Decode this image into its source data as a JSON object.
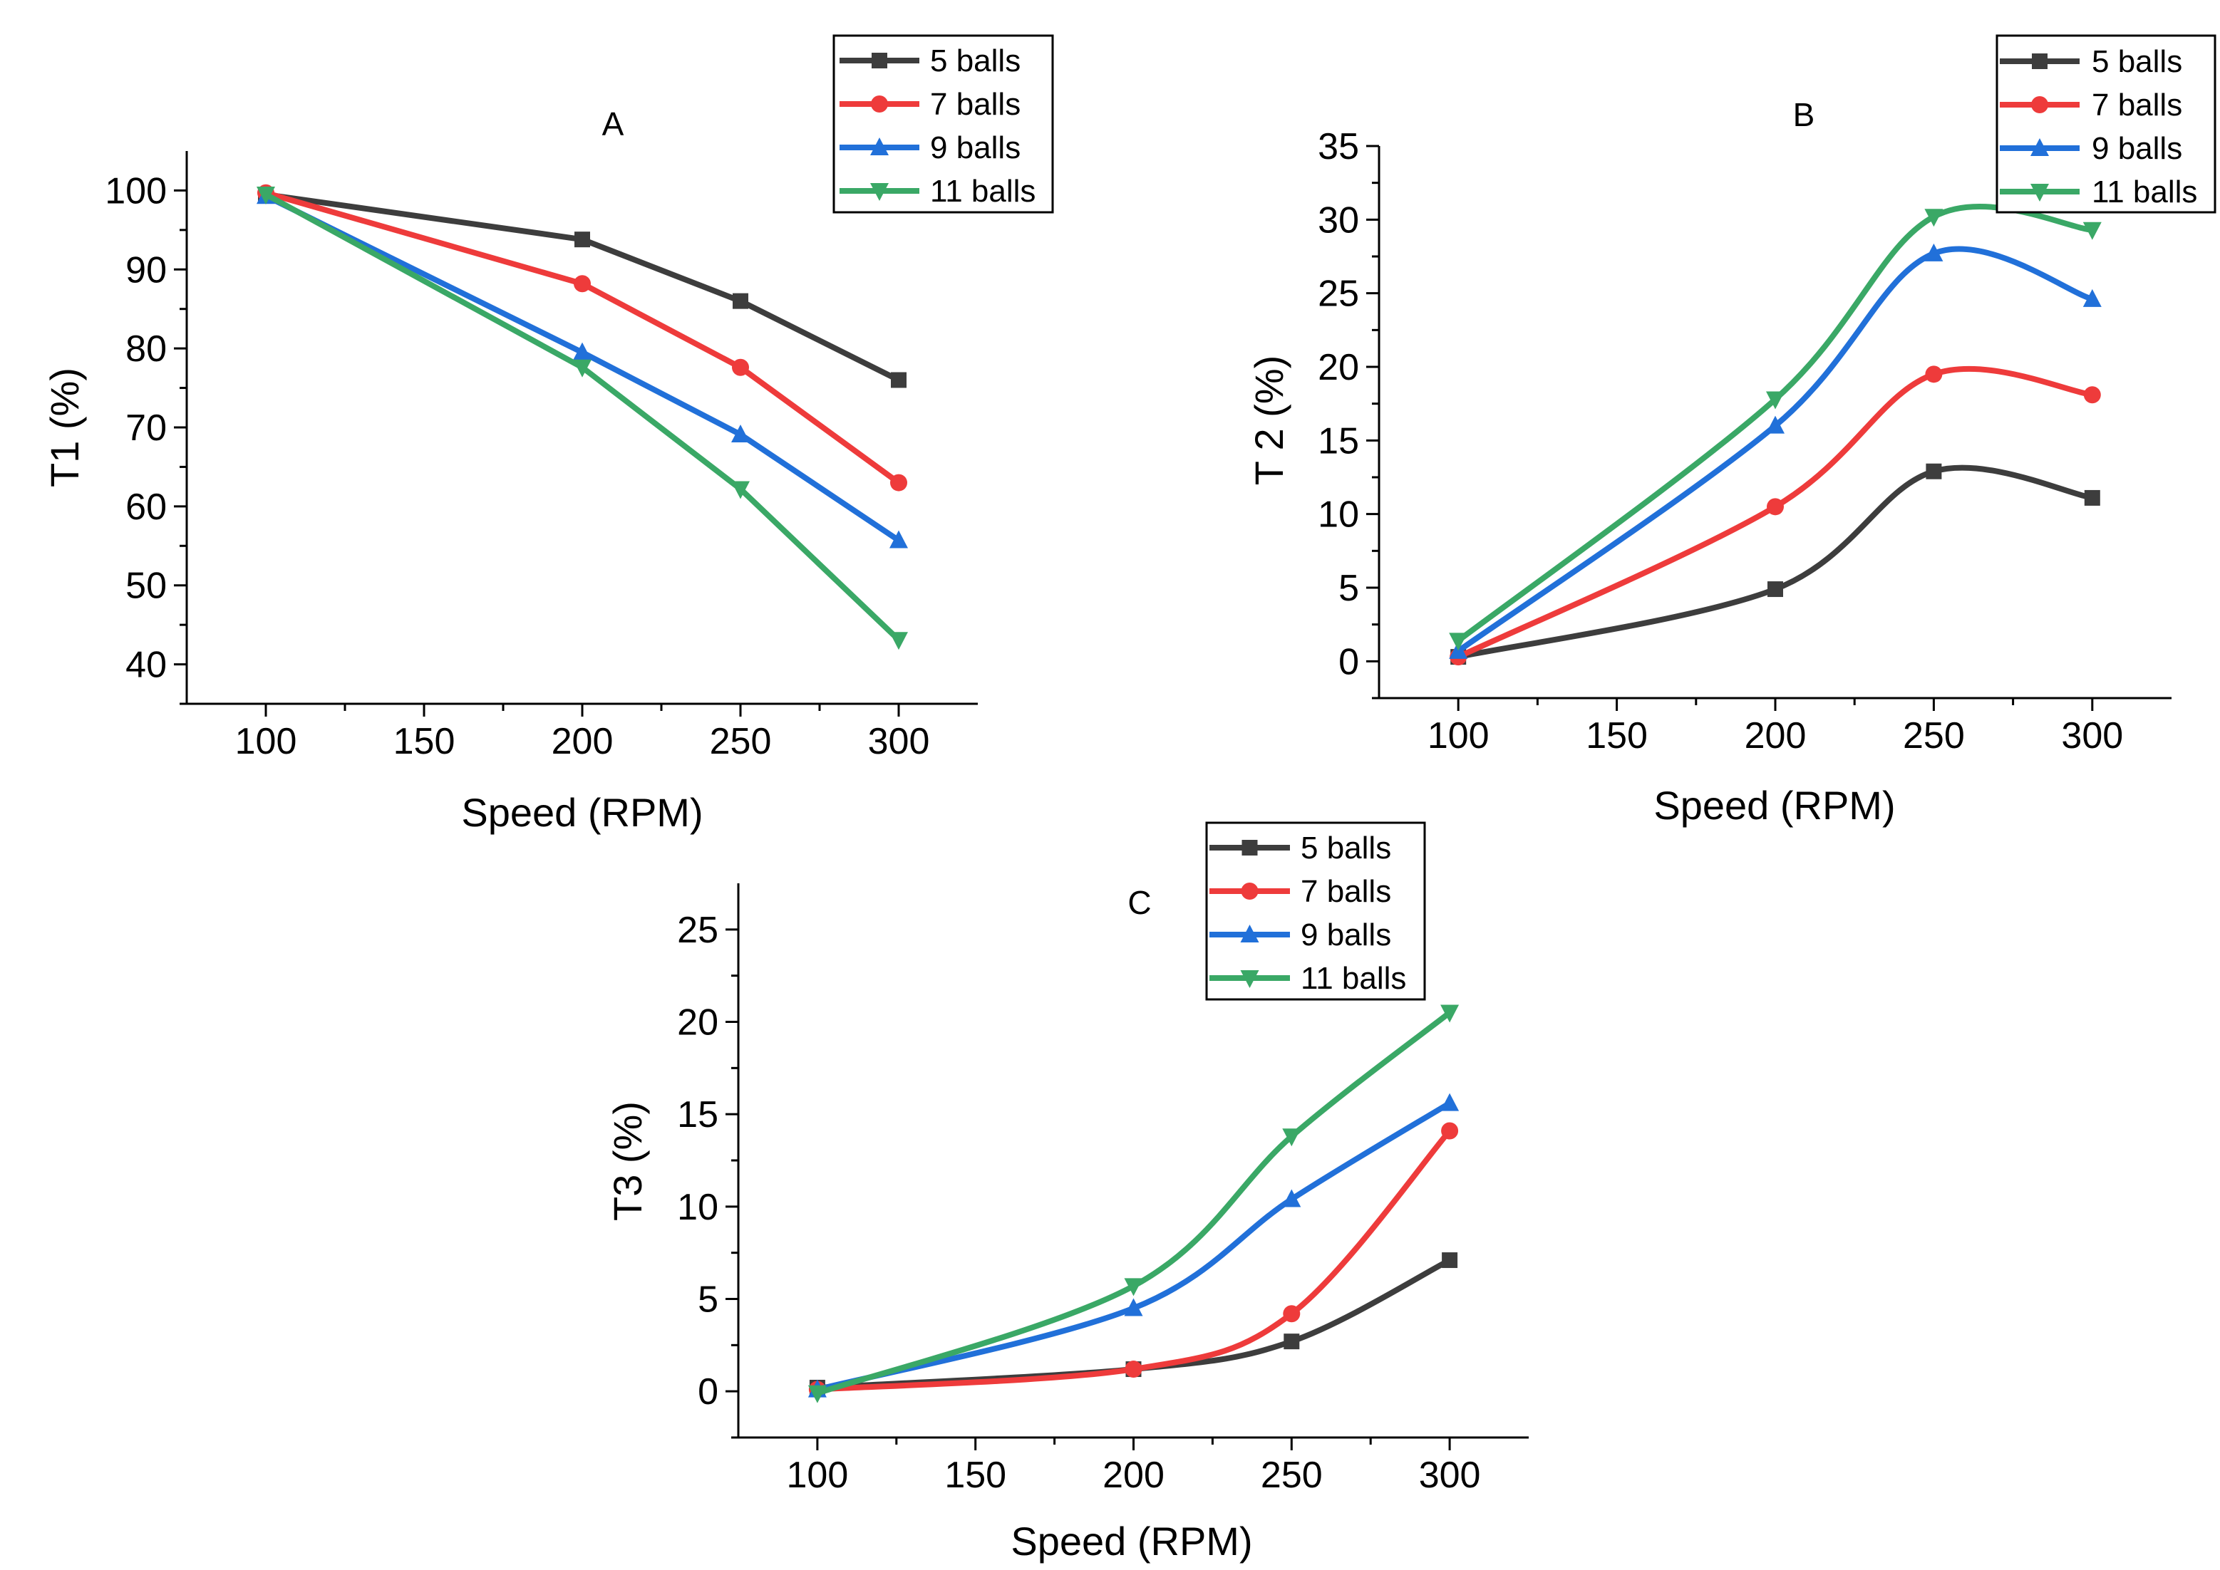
{
  "colors": {
    "s5": "#3d3d3d",
    "s7": "#ee3b3b",
    "s9": "#2170d9",
    "s11": "#3aa866"
  },
  "chart_data": [
    {
      "type": "line",
      "panel": "A",
      "title": "A",
      "xlabel": "Speed (RPM)",
      "ylabel": "T1 (%)",
      "xlim": [
        75,
        325
      ],
      "ylim": [
        35,
        105
      ],
      "xticks": [
        100,
        150,
        200,
        250,
        300
      ],
      "xtick_labels": [
        "100",
        "150",
        "200",
        "250",
        "300"
      ],
      "yticks": [
        40,
        50,
        60,
        70,
        80,
        90,
        100
      ],
      "ytick_labels": [
        "40",
        "50",
        "60",
        "70",
        "80",
        "90",
        "100"
      ],
      "smooth": false,
      "x": [
        100,
        200,
        250,
        300
      ],
      "series": [
        {
          "name": "5 balls",
          "marker": "square",
          "values": [
            99.5,
            93.8,
            86,
            76
          ]
        },
        {
          "name": "7 balls",
          "marker": "circle",
          "values": [
            99.7,
            88.2,
            77.6,
            63
          ]
        },
        {
          "name": "9 balls",
          "marker": "triangle-up",
          "values": [
            99.3,
            79.5,
            69.1,
            55.7
          ]
        },
        {
          "name": "11 balls",
          "marker": "triangle-down",
          "values": [
            99.5,
            77.6,
            62.2,
            43.1
          ]
        }
      ],
      "legend": "top-right"
    },
    {
      "type": "line",
      "panel": "B",
      "title": "B",
      "xlabel": "Speed (RPM)",
      "ylabel": "T 2 (%)",
      "xlim": [
        75,
        325
      ],
      "ylim": [
        -2.5,
        35
      ],
      "xticks": [
        100,
        150,
        200,
        250,
        300
      ],
      "xtick_labels": [
        "100",
        "150",
        "200",
        "250",
        "300"
      ],
      "yticks": [
        0,
        5,
        10,
        15,
        20,
        25,
        30,
        35
      ],
      "ytick_labels": [
        "0",
        "5",
        "10",
        "15",
        "20",
        "25",
        "30",
        "35"
      ],
      "smooth": true,
      "x": [
        100,
        200,
        250,
        300
      ],
      "series": [
        {
          "name": "5 balls",
          "marker": "square",
          "values": [
            0.3,
            4.9,
            12.9,
            11.1
          ]
        },
        {
          "name": "7 balls",
          "marker": "circle",
          "values": [
            0.3,
            10.5,
            19.5,
            18.1
          ]
        },
        {
          "name": "9 balls",
          "marker": "triangle-up",
          "values": [
            0.7,
            16,
            27.7,
            24.6
          ]
        },
        {
          "name": "11 balls",
          "marker": "triangle-down",
          "values": [
            1.4,
            17.8,
            30.2,
            29.3
          ]
        }
      ],
      "legend": "top-right"
    },
    {
      "type": "line",
      "panel": "C",
      "title": "C",
      "xlabel": "Speed (RPM)",
      "ylabel": "T3 (%)",
      "xlim": [
        75,
        325
      ],
      "ylim": [
        -2.5,
        27.5
      ],
      "xticks": [
        100,
        150,
        200,
        250,
        300
      ],
      "xtick_labels": [
        "100",
        "150",
        "200",
        "250",
        "300"
      ],
      "yticks": [
        0,
        5,
        10,
        15,
        20,
        25
      ],
      "ytick_labels": [
        "0",
        "5",
        "10",
        "15",
        "20",
        "25"
      ],
      "smooth": true,
      "x": [
        100,
        200,
        250,
        300
      ],
      "series": [
        {
          "name": "5 balls",
          "marker": "square",
          "values": [
            0.2,
            1.2,
            2.7,
            7.1
          ]
        },
        {
          "name": "7 balls",
          "marker": "circle",
          "values": [
            0.1,
            1.2,
            4.2,
            14.1
          ]
        },
        {
          "name": "9 balls",
          "marker": "triangle-up",
          "values": [
            0.1,
            4.5,
            10.4,
            15.6
          ]
        },
        {
          "name": "11 balls",
          "marker": "triangle-down",
          "values": [
            -0.1,
            5.7,
            13.8,
            20.5
          ]
        }
      ],
      "legend": "top-right"
    }
  ]
}
